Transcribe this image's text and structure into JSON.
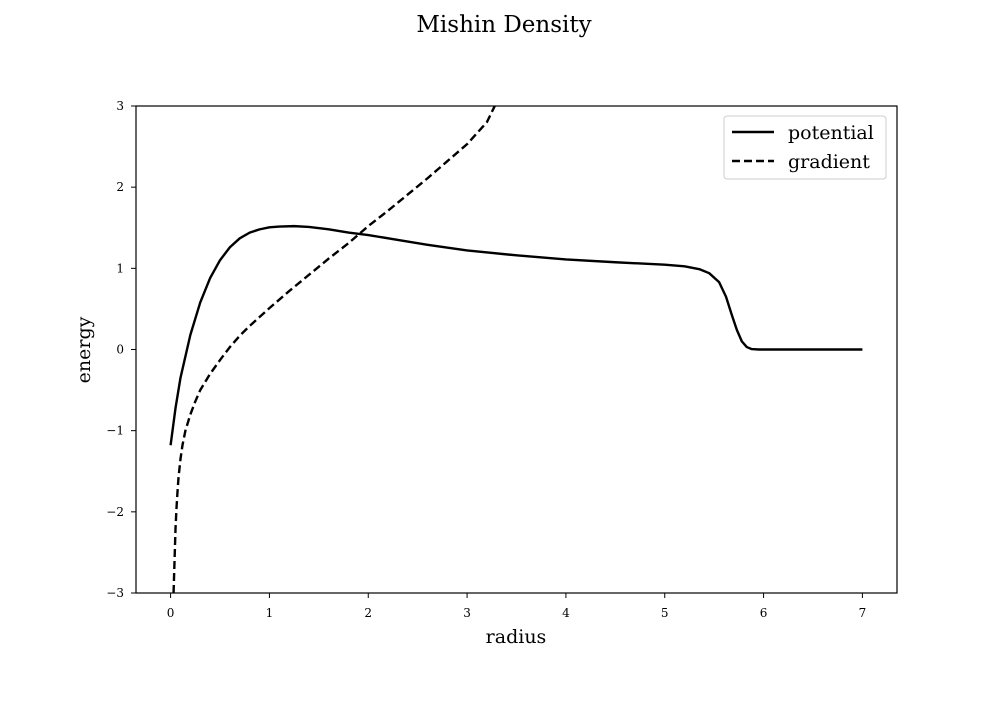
{
  "chart_data": {
    "type": "line",
    "title": "Mishin Density",
    "xlabel": "radius",
    "ylabel": "energy",
    "xlim": [
      -0.35,
      7.35
    ],
    "ylim": [
      -3,
      3
    ],
    "xticks": [
      0,
      1,
      2,
      3,
      4,
      5,
      6,
      7
    ],
    "xtick_labels": [
      "0",
      "1",
      "2",
      "3",
      "4",
      "5",
      "6",
      "7"
    ],
    "yticks": [
      -3,
      -2,
      -1,
      0,
      1,
      2,
      3
    ],
    "ytick_labels": [
      "−3",
      "−2",
      "−1",
      "0",
      "1",
      "2",
      "3"
    ],
    "grid": false,
    "legend_position": "top-right",
    "series": [
      {
        "name": "potential",
        "style": "solid",
        "color": "#000000",
        "x": [
          0.0,
          0.05,
          0.1,
          0.2,
          0.3,
          0.4,
          0.5,
          0.6,
          0.7,
          0.8,
          0.9,
          1.0,
          1.1,
          1.25,
          1.4,
          1.6,
          1.8,
          2.0,
          2.3,
          2.6,
          3.0,
          3.5,
          4.0,
          4.5,
          5.0,
          5.2,
          5.35,
          5.45,
          5.55,
          5.62,
          5.68,
          5.73,
          5.78,
          5.83,
          5.88,
          5.95,
          6.0,
          6.5,
          7.0
        ],
        "y": [
          -1.18,
          -0.72,
          -0.35,
          0.18,
          0.58,
          0.88,
          1.1,
          1.26,
          1.37,
          1.44,
          1.48,
          1.505,
          1.515,
          1.52,
          1.51,
          1.48,
          1.44,
          1.41,
          1.35,
          1.29,
          1.22,
          1.16,
          1.11,
          1.075,
          1.045,
          1.025,
          0.99,
          0.94,
          0.83,
          0.65,
          0.42,
          0.24,
          0.1,
          0.03,
          0.005,
          0.0,
          0.0,
          0.0,
          0.0
        ]
      },
      {
        "name": "gradient",
        "style": "dashed",
        "color": "#000000",
        "x": [
          0.03,
          0.04,
          0.05,
          0.06,
          0.07,
          0.08,
          0.1,
          0.12,
          0.15,
          0.2,
          0.25,
          0.3,
          0.4,
          0.5,
          0.6,
          0.7,
          0.8,
          0.9,
          1.0,
          1.2,
          1.4,
          1.6,
          1.8,
          2.0,
          2.2,
          2.4,
          2.6,
          2.8,
          3.0,
          3.2,
          3.28
        ],
        "y": [
          -3.0,
          -2.6,
          -2.2,
          -1.95,
          -1.75,
          -1.58,
          -1.35,
          -1.18,
          -1.0,
          -0.8,
          -0.64,
          -0.5,
          -0.3,
          -0.13,
          0.03,
          0.17,
          0.29,
          0.4,
          0.51,
          0.72,
          0.92,
          1.12,
          1.31,
          1.52,
          1.71,
          1.91,
          2.11,
          2.32,
          2.53,
          2.8,
          3.0
        ]
      }
    ]
  }
}
